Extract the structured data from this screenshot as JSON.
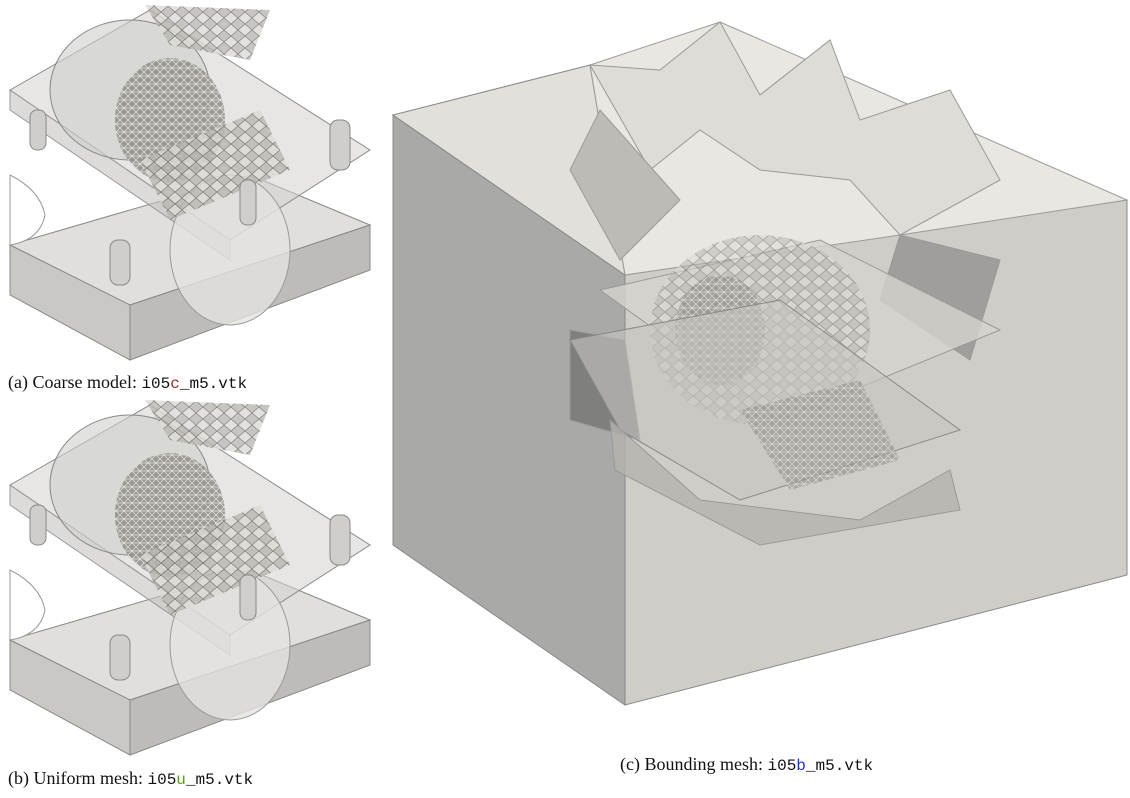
{
  "figures": [
    {
      "caption_prefix": "(a) Coarse model:",
      "file_stem": "i05",
      "file_variant": "c",
      "file_suffix": "_m5.vtk"
    },
    {
      "caption_prefix": "(b) Uniform mesh:",
      "file_stem": "i05",
      "file_variant": "u",
      "file_suffix": "_m5.vtk"
    },
    {
      "caption_prefix": "(c) Bounding mesh:",
      "file_stem": "i05",
      "file_variant": "b",
      "file_suffix": "_m5.vtk"
    }
  ]
}
